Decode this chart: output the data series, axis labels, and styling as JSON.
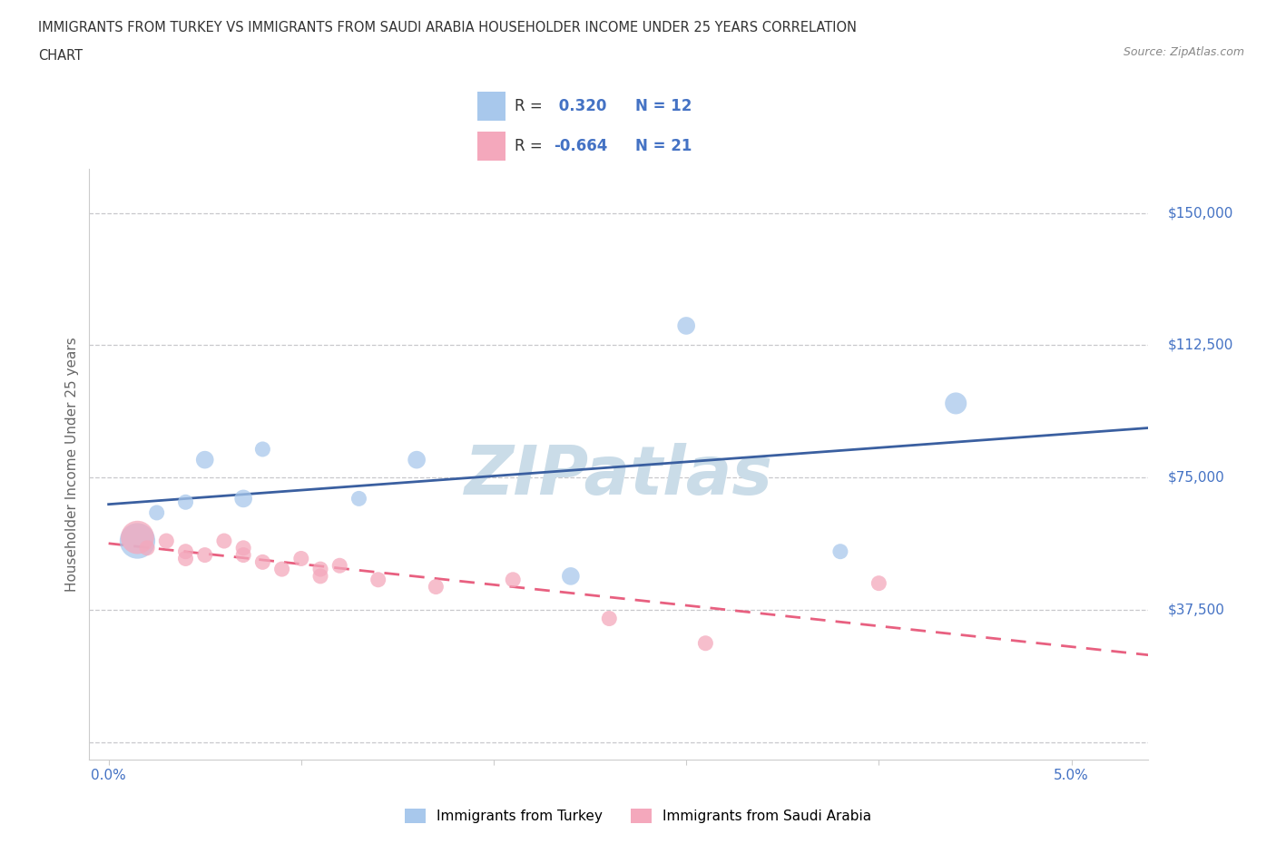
{
  "title_line1": "IMMIGRANTS FROM TURKEY VS IMMIGRANTS FROM SAUDI ARABIA HOUSEHOLDER INCOME UNDER 25 YEARS CORRELATION",
  "title_line2": "CHART",
  "source": "Source: ZipAtlas.com",
  "ylabel": "Householder Income Under 25 years",
  "xlim": [
    -0.001,
    0.054
  ],
  "ylim": [
    -5000,
    162500
  ],
  "yticks": [
    0,
    37500,
    75000,
    112500,
    150000
  ],
  "ytick_labels": [
    "",
    "$37,500",
    "$75,000",
    "$112,500",
    "$150,000"
  ],
  "xticks": [
    0.0,
    0.01,
    0.02,
    0.03,
    0.04,
    0.05
  ],
  "xtick_labels": [
    "0.0%",
    "",
    "",
    "",
    "",
    "5.0%"
  ],
  "turkey_R": 0.32,
  "turkey_N": 12,
  "saudi_R": -0.664,
  "saudi_N": 21,
  "turkey_color": "#A8C8EC",
  "saudi_color": "#F4A8BC",
  "turkey_line_color": "#3A5FA0",
  "saudi_line_color": "#E86080",
  "background_color": "#FFFFFF",
  "watermark": "ZIPatlas",
  "watermark_color": "#CADCE8",
  "grid_color": "#C8C8CC",
  "legend_text_color": "#333333",
  "legend_value_color": "#4472C4",
  "turkey_x": [
    0.0015,
    0.0025,
    0.004,
    0.005,
    0.007,
    0.008,
    0.013,
    0.016,
    0.024,
    0.03,
    0.038,
    0.044
  ],
  "turkey_y": [
    57000,
    65000,
    68000,
    80000,
    69000,
    83000,
    69000,
    80000,
    47000,
    118000,
    54000,
    96000
  ],
  "saudi_x": [
    0.0015,
    0.002,
    0.003,
    0.004,
    0.004,
    0.005,
    0.006,
    0.007,
    0.007,
    0.008,
    0.009,
    0.01,
    0.011,
    0.011,
    0.012,
    0.014,
    0.017,
    0.021,
    0.026,
    0.031,
    0.04
  ],
  "saudi_y": [
    58000,
    55000,
    57000,
    54000,
    52000,
    53000,
    57000,
    55000,
    53000,
    51000,
    49000,
    52000,
    49000,
    47000,
    50000,
    46000,
    44000,
    46000,
    35000,
    28000,
    45000
  ],
  "turkey_dot_sizes": [
    800,
    150,
    150,
    200,
    200,
    150,
    150,
    200,
    200,
    200,
    150,
    300
  ],
  "saudi_dot_sizes": [
    700,
    150,
    150,
    150,
    150,
    150,
    150,
    150,
    150,
    150,
    150,
    150,
    150,
    150,
    150,
    150,
    150,
    150,
    150,
    150,
    150
  ]
}
